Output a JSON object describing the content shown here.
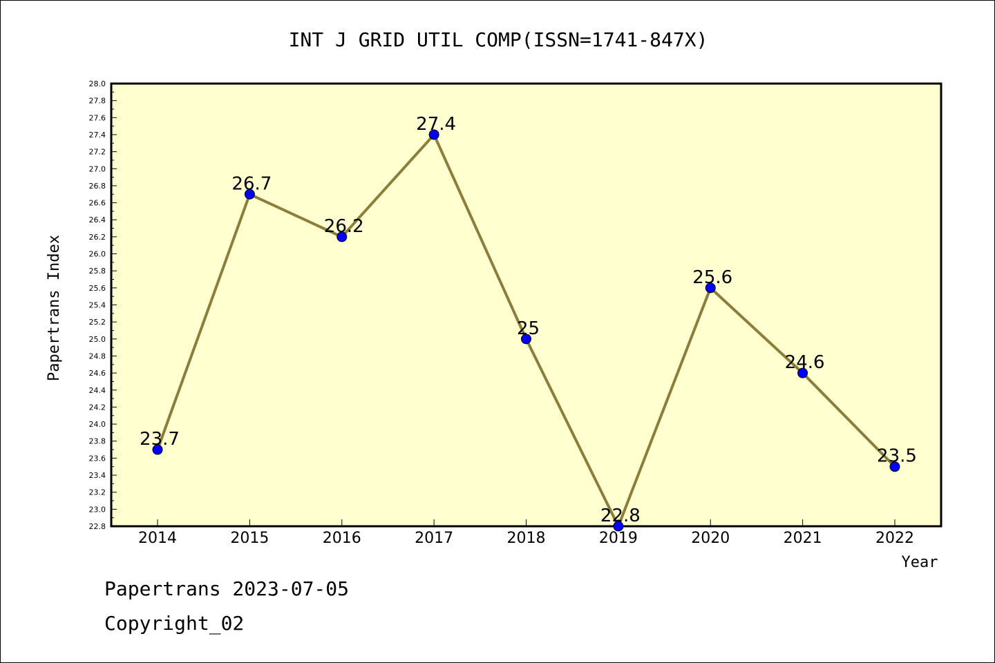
{
  "chart_data": {
    "type": "line",
    "title": "INT J GRID UTIL COMP(ISSN=1741-847X)",
    "xlabel": "Year",
    "ylabel": "Papertrans Index",
    "categories": [
      "2014",
      "2015",
      "2016",
      "2017",
      "2018",
      "2019",
      "2020",
      "2021",
      "2022"
    ],
    "values": [
      23.7,
      26.7,
      26.2,
      27.4,
      25,
      22.8,
      25.6,
      24.6,
      23.5
    ],
    "data_labels": [
      "23.7",
      "26.7",
      "26.2",
      "27.4",
      "25",
      "22.8",
      "25.6",
      "24.6",
      "23.5"
    ],
    "ylim": [
      22.8,
      28.0
    ],
    "ytick_step": 0.2,
    "yticks": [
      "22.8",
      "23.0",
      "23.2",
      "23.4",
      "23.6",
      "23.8",
      "24.0",
      "24.2",
      "24.4",
      "24.6",
      "24.8",
      "25.0",
      "25.2",
      "25.4",
      "25.6",
      "25.8",
      "26.0",
      "26.2",
      "26.4",
      "26.6",
      "26.8",
      "27.0",
      "27.2",
      "27.4",
      "27.6",
      "27.8",
      "28.0"
    ],
    "grid": false,
    "colors": {
      "plot_background": "#ffffd0",
      "line": "#8b7d3a",
      "marker": "#0000ff"
    }
  },
  "footer": {
    "line1": "Papertrans 2023-07-05",
    "line2": "Copyright_02"
  }
}
